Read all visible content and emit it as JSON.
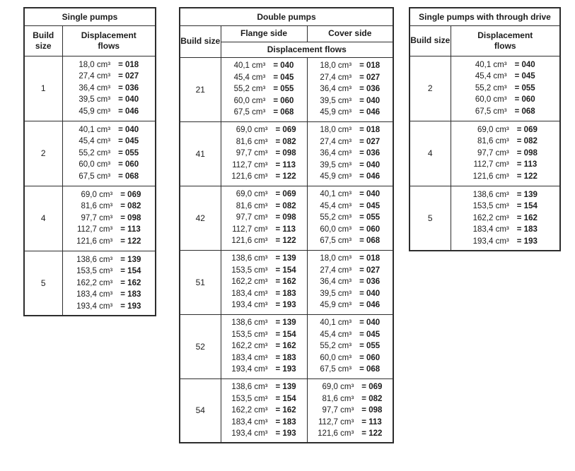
{
  "colors": {
    "background": "#ffffff",
    "text": "#1c1c1c",
    "table_border": "#2d2d2d"
  },
  "tables": [
    {
      "type": "single",
      "title": "Single pumps",
      "headers": {
        "build": "Build size",
        "flows": "Displacement flows"
      },
      "rows": [
        {
          "build": "1",
          "flows": [
            {
              "disp": "18,0 cm³",
              "code": "= 018"
            },
            {
              "disp": "27,4 cm³",
              "code": "= 027"
            },
            {
              "disp": "36,4 cm³",
              "code": "= 036"
            },
            {
              "disp": "39,5 cm³",
              "code": "= 040"
            },
            {
              "disp": "45,9 cm³",
              "code": "= 046"
            }
          ]
        },
        {
          "build": "2",
          "flows": [
            {
              "disp": "40,1 cm³",
              "code": "= 040"
            },
            {
              "disp": "45,4 cm³",
              "code": "= 045"
            },
            {
              "disp": "55,2 cm³",
              "code": "= 055"
            },
            {
              "disp": "60,0 cm³",
              "code": "= 060"
            },
            {
              "disp": "67,5 cm³",
              "code": "= 068"
            }
          ]
        },
        {
          "build": "4",
          "flows": [
            {
              "disp": "69,0 cm³",
              "code": "= 069"
            },
            {
              "disp": "81,6 cm³",
              "code": "= 082"
            },
            {
              "disp": "97,7 cm³",
              "code": "= 098"
            },
            {
              "disp": "112,7 cm³",
              "code": "= 113"
            },
            {
              "disp": "121,6 cm³",
              "code": "= 122"
            }
          ]
        },
        {
          "build": "5",
          "flows": [
            {
              "disp": "138,6 cm³",
              "code": "= 139"
            },
            {
              "disp": "153,5 cm³",
              "code": "= 154"
            },
            {
              "disp": "162,2 cm³",
              "code": "= 162"
            },
            {
              "disp": "183,4 cm³",
              "code": "= 183"
            },
            {
              "disp": "193,4 cm³",
              "code": "= 193"
            }
          ]
        }
      ]
    },
    {
      "type": "double",
      "title": "Double pumps",
      "headers": {
        "build": "Build size",
        "flange": "Flange side",
        "cover": "Cover side",
        "flows": "Displacement flows"
      },
      "rows": [
        {
          "build": "21",
          "flange": [
            {
              "disp": "40,1 cm³",
              "code": "= 040"
            },
            {
              "disp": "45,4 cm³",
              "code": "= 045"
            },
            {
              "disp": "55,2 cm³",
              "code": "= 055"
            },
            {
              "disp": "60,0 cm³",
              "code": "= 060"
            },
            {
              "disp": "67,5 cm³",
              "code": "= 068"
            }
          ],
          "cover": [
            {
              "disp": "18,0 cm³",
              "code": "= 018"
            },
            {
              "disp": "27,4 cm³",
              "code": "= 027"
            },
            {
              "disp": "36,4 cm³",
              "code": "= 036"
            },
            {
              "disp": "39,5 cm³",
              "code": "= 040"
            },
            {
              "disp": "45,9 cm³",
              "code": "= 046"
            }
          ]
        },
        {
          "build": "41",
          "flange": [
            {
              "disp": "69,0 cm³",
              "code": "= 069"
            },
            {
              "disp": "81,6 cm³",
              "code": "= 082"
            },
            {
              "disp": "97,7 cm³",
              "code": "= 098"
            },
            {
              "disp": "112,7 cm³",
              "code": "= 113"
            },
            {
              "disp": "121,6 cm³",
              "code": "= 122"
            }
          ],
          "cover": [
            {
              "disp": "18,0 cm³",
              "code": "= 018"
            },
            {
              "disp": "27,4 cm³",
              "code": "= 027"
            },
            {
              "disp": "36,4 cm³",
              "code": "= 036"
            },
            {
              "disp": "39,5 cm³",
              "code": "= 040"
            },
            {
              "disp": "45,9 cm³",
              "code": "= 046"
            }
          ]
        },
        {
          "build": "42",
          "flange": [
            {
              "disp": "69,0 cm³",
              "code": "= 069"
            },
            {
              "disp": "81,6 cm³",
              "code": "= 082"
            },
            {
              "disp": "97,7 cm³",
              "code": "= 098"
            },
            {
              "disp": "112,7 cm³",
              "code": "= 113"
            },
            {
              "disp": "121,6 cm³",
              "code": "= 122"
            }
          ],
          "cover": [
            {
              "disp": "40,1 cm³",
              "code": "= 040"
            },
            {
              "disp": "45,4 cm³",
              "code": "= 045"
            },
            {
              "disp": "55,2 cm³",
              "code": "= 055"
            },
            {
              "disp": "60,0 cm³",
              "code": "= 060"
            },
            {
              "disp": "67,5 cm³",
              "code": "= 068"
            }
          ]
        },
        {
          "build": "51",
          "flange": [
            {
              "disp": "138,6 cm³",
              "code": "= 139"
            },
            {
              "disp": "153,5 cm³",
              "code": "= 154"
            },
            {
              "disp": "162,2 cm³",
              "code": "= 162"
            },
            {
              "disp": "183,4 cm³",
              "code": "= 183"
            },
            {
              "disp": "193,4 cm³",
              "code": "= 193"
            }
          ],
          "cover": [
            {
              "disp": "18,0 cm³",
              "code": "= 018"
            },
            {
              "disp": "27,4 cm³",
              "code": "= 027"
            },
            {
              "disp": "36,4 cm³",
              "code": "= 036"
            },
            {
              "disp": "39,5 cm³",
              "code": "= 040"
            },
            {
              "disp": "45,9 cm³",
              "code": "= 046"
            }
          ]
        },
        {
          "build": "52",
          "flange": [
            {
              "disp": "138,6 cm³",
              "code": "= 139"
            },
            {
              "disp": "153,5 cm³",
              "code": "= 154"
            },
            {
              "disp": "162,2 cm³",
              "code": "= 162"
            },
            {
              "disp": "183,4 cm³",
              "code": "= 183"
            },
            {
              "disp": "193,4 cm³",
              "code": "= 193"
            }
          ],
          "cover": [
            {
              "disp": "40,1 cm³",
              "code": "= 040"
            },
            {
              "disp": "45,4 cm³",
              "code": "= 045"
            },
            {
              "disp": "55,2 cm³",
              "code": "= 055"
            },
            {
              "disp": "60,0 cm³",
              "code": "= 060"
            },
            {
              "disp": "67,5 cm³",
              "code": "= 068"
            }
          ]
        },
        {
          "build": "54",
          "flange": [
            {
              "disp": "138,6 cm³",
              "code": "= 139"
            },
            {
              "disp": "153,5 cm³",
              "code": "= 154"
            },
            {
              "disp": "162,2 cm³",
              "code": "= 162"
            },
            {
              "disp": "183,4 cm³",
              "code": "= 183"
            },
            {
              "disp": "193,4 cm³",
              "code": "= 193"
            }
          ],
          "cover": [
            {
              "disp": "69,0 cm³",
              "code": "= 069"
            },
            {
              "disp": "81,6 cm³",
              "code": "= 082"
            },
            {
              "disp": "97,7 cm³",
              "code": "= 098"
            },
            {
              "disp": "112,7 cm³",
              "code": "= 113"
            },
            {
              "disp": "121,6 cm³",
              "code": "= 122"
            }
          ]
        }
      ]
    },
    {
      "type": "single",
      "title": "Single pumps with through drive",
      "headers": {
        "build": "Build size",
        "flows": "Displacement flows"
      },
      "rows": [
        {
          "build": "2",
          "flows": [
            {
              "disp": "40,1 cm³",
              "code": "= 040"
            },
            {
              "disp": "45,4 cm³",
              "code": "= 045"
            },
            {
              "disp": "55,2 cm³",
              "code": "= 055"
            },
            {
              "disp": "60,0 cm³",
              "code": "= 060"
            },
            {
              "disp": "67,5 cm³",
              "code": "= 068"
            }
          ]
        },
        {
          "build": "4",
          "flows": [
            {
              "disp": "69,0 cm³",
              "code": "= 069"
            },
            {
              "disp": "81,6 cm³",
              "code": "= 082"
            },
            {
              "disp": "97,7 cm³",
              "code": "= 098"
            },
            {
              "disp": "112,7 cm³",
              "code": "= 113"
            },
            {
              "disp": "121,6 cm³",
              "code": "= 122"
            }
          ]
        },
        {
          "build": "5",
          "flows": [
            {
              "disp": "138,6 cm³",
              "code": "= 139"
            },
            {
              "disp": "153,5 cm³",
              "code": "= 154"
            },
            {
              "disp": "162,2 cm³",
              "code": "= 162"
            },
            {
              "disp": "183,4 cm³",
              "code": "= 183"
            },
            {
              "disp": "193,4 cm³",
              "code": "= 193"
            }
          ]
        }
      ]
    }
  ]
}
